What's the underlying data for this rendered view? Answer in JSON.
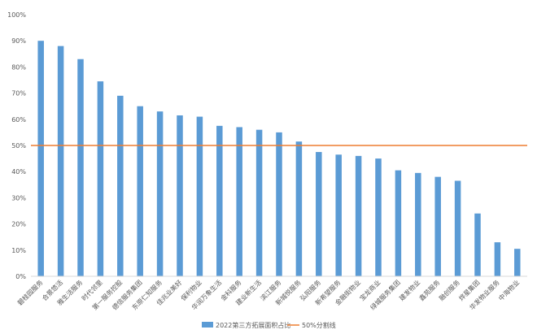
{
  "chart_data": {
    "type": "bar",
    "categories": [
      "碧桂园服务",
      "合景悠活",
      "雅生活服务",
      "时代邻里",
      "第一服务控股",
      "德信服务集团",
      "东原仁知服务",
      "佳兆业美好",
      "保利物业",
      "华润万象生活",
      "金科服务",
      "建业新生活",
      "滨江服务",
      "新城悦服务",
      "弘阳服务",
      "新希望服务",
      "金融街物业",
      "宝龙商业",
      "绿城服务集团",
      "建发物业",
      "鑫苑服务",
      "融创服务",
      "烨星集团",
      "华发物业服务",
      "中海物业"
    ],
    "series": [
      {
        "name": "2022第三方拓展面积占比",
        "values": [
          90,
          88,
          83,
          74.5,
          69,
          65,
          63,
          61.5,
          61,
          57.5,
          57,
          56,
          55,
          51.5,
          47.5,
          46.5,
          46,
          45,
          40.5,
          39.5,
          38,
          36.5,
          24,
          13,
          10.5
        ],
        "color": "#5b9bd5"
      }
    ],
    "reference_line": {
      "name": "50%分割线",
      "value": 50,
      "color": "#ed7d31"
    },
    "ylim": [
      0,
      100
    ],
    "y_ticks": [
      0,
      10,
      20,
      30,
      40,
      50,
      60,
      70,
      80,
      90,
      100
    ],
    "y_tick_suffix": "%",
    "grid": false,
    "legend_position": "bottom",
    "title": "",
    "xlabel": "",
    "ylabel": ""
  }
}
